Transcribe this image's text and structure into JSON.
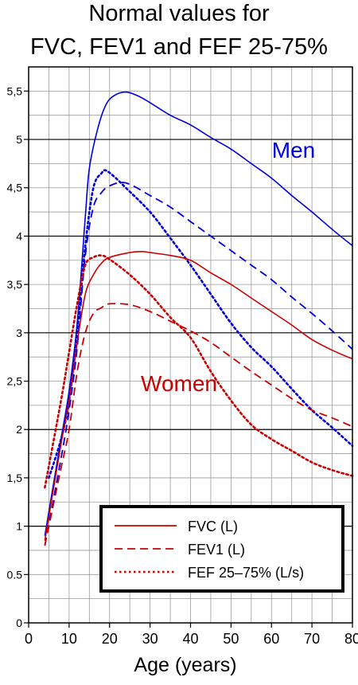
{
  "chart_data": {
    "type": "line",
    "title_lines": [
      "Normal values for",
      "FVC, FEV1 and FEF 25-75%"
    ],
    "xlabel": "Age (years)",
    "ylabel": "",
    "xlim": [
      0,
      80
    ],
    "ylim": [
      0,
      5.75
    ],
    "grid": true,
    "x_ticks": [
      0,
      10,
      20,
      30,
      40,
      50,
      60,
      70,
      80
    ],
    "x_tick_labels": [
      "0",
      "10",
      "20",
      "30",
      "40",
      "50",
      "60",
      "70",
      "80"
    ],
    "y_ticks": [
      0,
      0.5,
      1,
      1.5,
      2,
      2.5,
      3,
      3.5,
      4,
      4.5,
      5,
      5.5
    ],
    "y_tick_labels": [
      "0",
      "0.5",
      "1",
      "1,5",
      "2",
      "2,5",
      "3",
      "3,5",
      "4",
      "4,5",
      "5",
      "5,5"
    ],
    "annotations": [
      {
        "text": "Men",
        "x": 65,
        "y": 4.87,
        "color": "#0000dd"
      },
      {
        "text": "Women",
        "x": 25,
        "y": 2.45,
        "color": "#cc0000"
      }
    ],
    "legend": {
      "placement": "bottom-right",
      "entries": [
        {
          "label": "FVC (L)",
          "style": "solid"
        },
        {
          "label": "FEV1 (L)",
          "style": "dashed"
        },
        {
          "label": "FEF 25–75% (L/s)",
          "style": "dotted"
        }
      ]
    },
    "series": [
      {
        "group": "men",
        "measure": "FVC",
        "color": "#0000dd",
        "style": "solid",
        "points": [
          [
            4,
            0.9
          ],
          [
            8,
            1.9
          ],
          [
            10,
            2.4
          ],
          [
            12,
            3.1
          ],
          [
            14,
            4.2
          ],
          [
            15,
            4.7
          ],
          [
            17,
            5.1
          ],
          [
            19,
            5.35
          ],
          [
            21,
            5.45
          ],
          [
            24,
            5.49
          ],
          [
            27,
            5.45
          ],
          [
            30,
            5.38
          ],
          [
            35,
            5.25
          ],
          [
            40,
            5.15
          ],
          [
            45,
            5.02
          ],
          [
            50,
            4.9
          ],
          [
            55,
            4.75
          ],
          [
            60,
            4.6
          ],
          [
            65,
            4.42
          ],
          [
            70,
            4.25
          ],
          [
            75,
            4.07
          ],
          [
            80,
            3.9
          ]
        ]
      },
      {
        "group": "men",
        "measure": "FEV1",
        "color": "#0000dd",
        "style": "dashed",
        "points": [
          [
            4,
            0.8
          ],
          [
            8,
            1.7
          ],
          [
            10,
            2.2
          ],
          [
            12,
            2.85
          ],
          [
            14,
            3.8
          ],
          [
            16,
            4.3
          ],
          [
            18,
            4.45
          ],
          [
            20,
            4.52
          ],
          [
            24,
            4.55
          ],
          [
            30,
            4.42
          ],
          [
            35,
            4.3
          ],
          [
            40,
            4.15
          ],
          [
            45,
            4.0
          ],
          [
            50,
            3.85
          ],
          [
            55,
            3.7
          ],
          [
            60,
            3.55
          ],
          [
            65,
            3.37
          ],
          [
            70,
            3.2
          ],
          [
            75,
            3.02
          ],
          [
            80,
            2.83
          ]
        ]
      },
      {
        "group": "men",
        "measure": "FEF 25-75%",
        "color": "#0000dd",
        "style": "dotted",
        "points": [
          [
            5,
            1.5
          ],
          [
            8,
            1.9
          ],
          [
            10,
            2.3
          ],
          [
            12,
            3.0
          ],
          [
            14,
            3.9
          ],
          [
            16,
            4.5
          ],
          [
            18,
            4.65
          ],
          [
            19,
            4.68
          ],
          [
            21,
            4.62
          ],
          [
            24,
            4.5
          ],
          [
            30,
            4.25
          ],
          [
            35,
            3.98
          ],
          [
            40,
            3.7
          ],
          [
            45,
            3.4
          ],
          [
            50,
            3.1
          ],
          [
            55,
            2.85
          ],
          [
            60,
            2.65
          ],
          [
            65,
            2.42
          ],
          [
            70,
            2.2
          ],
          [
            75,
            2.02
          ],
          [
            80,
            1.83
          ]
        ]
      },
      {
        "group": "women",
        "measure": "FVC",
        "color": "#cc0000",
        "style": "solid",
        "points": [
          [
            4,
            0.85
          ],
          [
            8,
            1.85
          ],
          [
            10,
            2.3
          ],
          [
            12,
            2.9
          ],
          [
            14,
            3.4
          ],
          [
            16,
            3.6
          ],
          [
            18,
            3.72
          ],
          [
            20,
            3.78
          ],
          [
            25,
            3.83
          ],
          [
            28,
            3.84
          ],
          [
            30,
            3.83
          ],
          [
            35,
            3.8
          ],
          [
            40,
            3.75
          ],
          [
            45,
            3.62
          ],
          [
            50,
            3.5
          ],
          [
            55,
            3.36
          ],
          [
            60,
            3.22
          ],
          [
            65,
            3.08
          ],
          [
            70,
            2.93
          ],
          [
            75,
            2.82
          ],
          [
            80,
            2.73
          ]
        ]
      },
      {
        "group": "women",
        "measure": "FEV1",
        "color": "#cc0000",
        "style": "dashed",
        "points": [
          [
            4,
            0.8
          ],
          [
            8,
            1.6
          ],
          [
            10,
            2.0
          ],
          [
            12,
            2.6
          ],
          [
            14,
            3.0
          ],
          [
            16,
            3.2
          ],
          [
            18,
            3.26
          ],
          [
            20,
            3.3
          ],
          [
            25,
            3.29
          ],
          [
            30,
            3.22
          ],
          [
            35,
            3.12
          ],
          [
            40,
            3.02
          ],
          [
            45,
            2.9
          ],
          [
            50,
            2.75
          ],
          [
            55,
            2.6
          ],
          [
            60,
            2.46
          ],
          [
            65,
            2.32
          ],
          [
            70,
            2.2
          ],
          [
            75,
            2.12
          ],
          [
            80,
            2.03
          ]
        ]
      },
      {
        "group": "women",
        "measure": "FEF 25-75%",
        "color": "#cc0000",
        "style": "dotted",
        "points": [
          [
            4,
            1.4
          ],
          [
            8,
            2.3
          ],
          [
            10,
            2.8
          ],
          [
            12,
            3.3
          ],
          [
            14,
            3.7
          ],
          [
            16,
            3.78
          ],
          [
            18,
            3.8
          ],
          [
            20,
            3.76
          ],
          [
            25,
            3.6
          ],
          [
            30,
            3.4
          ],
          [
            35,
            3.16
          ],
          [
            40,
            2.95
          ],
          [
            45,
            2.6
          ],
          [
            50,
            2.3
          ],
          [
            55,
            2.05
          ],
          [
            60,
            1.9
          ],
          [
            65,
            1.78
          ],
          [
            70,
            1.66
          ],
          [
            75,
            1.58
          ],
          [
            80,
            1.52
          ]
        ]
      }
    ]
  }
}
